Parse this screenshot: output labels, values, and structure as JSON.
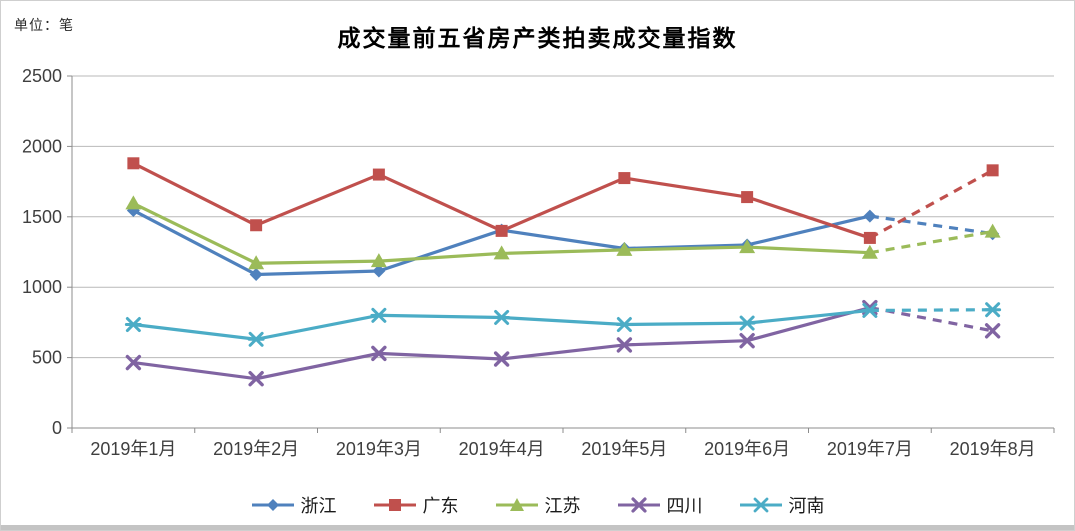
{
  "window": {
    "background": "#ffffff",
    "border_color": "#cfcfcf",
    "bottom_strip_color": "#c4c4c4"
  },
  "unit_label": "单位：笔",
  "chart_data": {
    "type": "line",
    "title": "成交量前五省房产类拍卖成交量指数",
    "unit_label": "单位：笔",
    "categories": [
      "2019年1月",
      "2019年2月",
      "2019年3月",
      "2019年4月",
      "2019年5月",
      "2019年6月",
      "2019年7月",
      "2019年8月"
    ],
    "series": [
      {
        "name": "浙江",
        "color": "#4F81BD",
        "marker": "diamond",
        "values": [
          1545,
          1090,
          1115,
          1405,
          1275,
          1300,
          1505,
          1380
        ]
      },
      {
        "name": "广东",
        "color": "#C0504D",
        "marker": "square",
        "values": [
          1880,
          1440,
          1800,
          1400,
          1775,
          1640,
          1350,
          1830
        ]
      },
      {
        "name": "江苏",
        "color": "#9BBB59",
        "marker": "triangle",
        "values": [
          1595,
          1170,
          1185,
          1240,
          1265,
          1285,
          1245,
          1395
        ]
      },
      {
        "name": "四川",
        "color": "#8064A2",
        "marker": "x",
        "values": [
          465,
          350,
          530,
          490,
          590,
          620,
          855,
          690
        ]
      },
      {
        "name": "河南",
        "color": "#4BACC6",
        "marker": "asterisk",
        "values": [
          735,
          630,
          800,
          785,
          735,
          745,
          835,
          840
        ]
      }
    ],
    "ylim": [
      0,
      2500
    ],
    "yticks": [
      0,
      500,
      1000,
      1500,
      2000,
      2500
    ],
    "grid": "horizontal",
    "gridline_color": "#b9b9b9",
    "axis_color": "#8c8c8c",
    "legend_position": "bottom",
    "dashed_from_index": 6,
    "dashed_segment_note": "2019年7月→2019年8月 为虚线"
  }
}
